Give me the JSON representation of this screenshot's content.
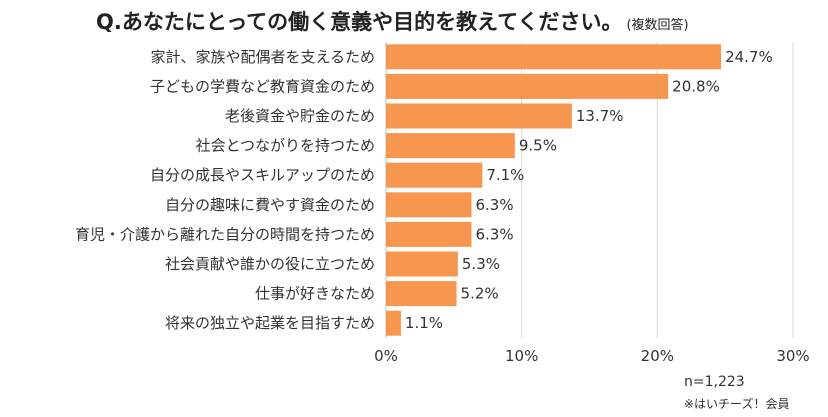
{
  "chart_data": {
    "type": "bar",
    "orientation": "horizontal",
    "title": "Q.あなたにとっての働く意義や目的を教えてください。",
    "title_suffix": "(複数回答)",
    "categories": [
      "家計、家族や配偶者を支えるため",
      "子どもの学費など教育資金のため",
      "老後資金や貯金のため",
      "社会とつながりを持つため",
      "自分の成長やスキルアップのため",
      "自分の趣味に費やす資金のため",
      "育児・介護から離れた自分の時間を持つため",
      "社会貢献や誰かの役に立つため",
      "仕事が好きなため",
      "将来の独立や起業を目指すため"
    ],
    "values": [
      24.7,
      20.8,
      13.7,
      9.5,
      7.1,
      6.3,
      6.3,
      5.3,
      5.2,
      1.1
    ],
    "value_labels": [
      "24.7%",
      "20.8%",
      "13.7%",
      "9.5%",
      "7.1%",
      "6.3%",
      "6.3%",
      "5.3%",
      "5.2%",
      "1.1%"
    ],
    "xlim": [
      0,
      30
    ],
    "x_ticks": [
      0,
      10,
      20,
      30
    ],
    "x_tick_labels": [
      "0%",
      "10%",
      "20%",
      "30%"
    ],
    "bar_color": "#f7964f",
    "grid": true,
    "sample_size": "n=1,223",
    "footnote": "※はいチーズ！会員"
  }
}
